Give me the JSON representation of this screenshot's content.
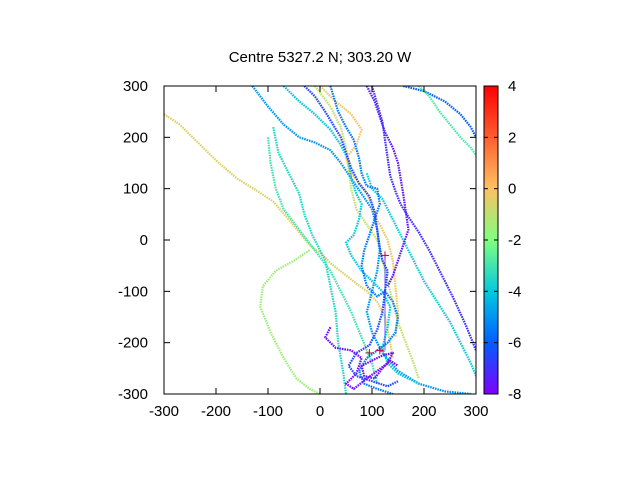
{
  "chart_data": {
    "type": "scatter",
    "title": "Centre 5327.2 N; 303.20  W",
    "xlabel": "",
    "ylabel": "",
    "xlim": [
      -300,
      300
    ],
    "ylim": [
      -300,
      300
    ],
    "xticks": [
      -300,
      -200,
      -100,
      0,
      100,
      200,
      300
    ],
    "yticks": [
      -300,
      -200,
      -100,
      0,
      100,
      200,
      300
    ],
    "xtick_labels": [
      "-300",
      "-200",
      "-100",
      "0",
      "100",
      "200",
      "300"
    ],
    "ytick_labels": [
      "-300",
      "-200",
      "-100",
      "0",
      "100",
      "200",
      "300"
    ],
    "grid": false,
    "colorbar": {
      "range": [
        -8,
        4
      ],
      "ticks": [
        4,
        2,
        0,
        -2,
        -4,
        -6,
        -8
      ],
      "tick_labels": [
        "4",
        "2",
        "0",
        "-2",
        "-4",
        "-6",
        "-8"
      ],
      "colormap": "rainbow",
      "colors": [
        "#8000ff",
        "#0060ff",
        "#00c8e0",
        "#80ff80",
        "#ffc060",
        "#ff6030",
        "#ff0000"
      ]
    },
    "tracks": [
      {
        "value": -0.5,
        "points": [
          [
            -300,
            245
          ],
          [
            -270,
            225
          ],
          [
            -240,
            195
          ],
          [
            -200,
            155
          ],
          [
            -160,
            120
          ],
          [
            -120,
            95
          ],
          [
            -90,
            75
          ],
          [
            -60,
            40
          ],
          [
            -40,
            15
          ],
          [
            -20,
            -10
          ],
          [
            0,
            -25
          ],
          [
            20,
            -45
          ],
          [
            45,
            -65
          ],
          [
            70,
            -85
          ],
          [
            90,
            -100
          ],
          [
            110,
            -120
          ],
          [
            125,
            -150
          ],
          [
            135,
            -200
          ],
          [
            140,
            -230
          ]
        ]
      },
      {
        "value": -1.5,
        "points": [
          [
            -20,
            -20
          ],
          [
            -50,
            -40
          ],
          [
            -85,
            -60
          ],
          [
            -110,
            -90
          ],
          [
            -115,
            -130
          ],
          [
            -95,
            -180
          ],
          [
            -70,
            -230
          ],
          [
            -45,
            -270
          ],
          [
            -20,
            -290
          ],
          [
            0,
            -300
          ]
        ]
      },
      {
        "value": -3.0,
        "points": [
          [
            -100,
            200
          ],
          [
            -95,
            150
          ],
          [
            -85,
            100
          ],
          [
            -70,
            60
          ],
          [
            -40,
            20
          ],
          [
            -10,
            -20
          ],
          [
            20,
            -60
          ],
          [
            40,
            -100
          ],
          [
            60,
            -140
          ],
          [
            80,
            -190
          ],
          [
            100,
            -240
          ],
          [
            110,
            -280
          ]
        ]
      },
      {
        "value": -3.5,
        "points": [
          [
            -90,
            220
          ],
          [
            -80,
            170
          ],
          [
            -60,
            130
          ],
          [
            -40,
            90
          ],
          [
            -30,
            50
          ],
          [
            -15,
            10
          ],
          [
            10,
            -40
          ],
          [
            20,
            -90
          ],
          [
            30,
            -140
          ],
          [
            35,
            -200
          ],
          [
            45,
            -260
          ],
          [
            50,
            -300
          ]
        ]
      },
      {
        "value": -1.0,
        "points": [
          [
            -10,
            300
          ],
          [
            20,
            260
          ],
          [
            40,
            220
          ],
          [
            50,
            180
          ],
          [
            55,
            140
          ],
          [
            60,
            100
          ],
          [
            70,
            60
          ],
          [
            90,
            30
          ],
          [
            110,
            0
          ],
          [
            120,
            -40
          ],
          [
            130,
            -80
          ],
          [
            140,
            -120
          ],
          [
            150,
            -160
          ],
          [
            165,
            -200
          ],
          [
            180,
            -240
          ],
          [
            190,
            -270
          ]
        ]
      },
      {
        "value": -0.2,
        "points": [
          [
            0,
            300
          ],
          [
            30,
            270
          ],
          [
            60,
            245
          ],
          [
            80,
            215
          ],
          [
            70,
            185
          ],
          [
            50,
            160
          ],
          [
            60,
            130
          ],
          [
            85,
            100
          ],
          [
            100,
            70
          ],
          [
            110,
            40
          ],
          [
            130,
            0
          ],
          [
            140,
            -40
          ],
          [
            145,
            -90
          ],
          [
            150,
            -140
          ],
          [
            145,
            -190
          ]
        ]
      },
      {
        "value": -5.0,
        "points": [
          [
            -130,
            300
          ],
          [
            -100,
            260
          ],
          [
            -70,
            225
          ],
          [
            -40,
            200
          ],
          [
            -10,
            190
          ],
          [
            20,
            175
          ],
          [
            40,
            150
          ],
          [
            60,
            120
          ],
          [
            80,
            90
          ],
          [
            100,
            60
          ],
          [
            110,
            20
          ],
          [
            115,
            -20
          ],
          [
            110,
            -60
          ],
          [
            100,
            -100
          ],
          [
            90,
            -140
          ],
          [
            100,
            -180
          ],
          [
            120,
            -220
          ],
          [
            150,
            -255
          ],
          [
            190,
            -280
          ],
          [
            240,
            -295
          ],
          [
            290,
            -300
          ]
        ]
      },
      {
        "value": -4.0,
        "points": [
          [
            -70,
            300
          ],
          [
            -40,
            270
          ],
          [
            -10,
            245
          ],
          [
            20,
            215
          ],
          [
            40,
            185
          ],
          [
            55,
            155
          ],
          [
            60,
            120
          ],
          [
            70,
            90
          ],
          [
            80,
            70
          ],
          [
            75,
            40
          ],
          [
            65,
            10
          ],
          [
            50,
            -5
          ],
          [
            60,
            -30
          ],
          [
            80,
            -60
          ],
          [
            100,
            -80
          ],
          [
            120,
            -100
          ],
          [
            135,
            -130
          ],
          [
            130,
            -170
          ],
          [
            120,
            -210
          ],
          [
            130,
            -240
          ],
          [
            150,
            -260
          ],
          [
            190,
            -280
          ]
        ]
      },
      {
        "value": -3.8,
        "points": [
          [
            90,
            130
          ],
          [
            100,
            100
          ],
          [
            120,
            80
          ],
          [
            140,
            40
          ],
          [
            160,
            0
          ],
          [
            180,
            -40
          ],
          [
            200,
            -80
          ],
          [
            225,
            -120
          ],
          [
            250,
            -160
          ],
          [
            270,
            -200
          ],
          [
            290,
            -240
          ],
          [
            300,
            -265
          ]
        ]
      },
      {
        "value": -5.5,
        "points": [
          [
            20,
            300
          ],
          [
            35,
            250
          ],
          [
            50,
            220
          ],
          [
            65,
            195
          ],
          [
            75,
            160
          ],
          [
            80,
            130
          ],
          [
            90,
            105
          ],
          [
            110,
            100
          ],
          [
            115,
            70
          ],
          [
            105,
            40
          ],
          [
            95,
            10
          ],
          [
            85,
            -20
          ],
          [
            80,
            -50
          ],
          [
            90,
            -90
          ],
          [
            110,
            -110
          ],
          [
            125,
            -100
          ],
          [
            140,
            -120
          ],
          [
            150,
            -150
          ],
          [
            145,
            -180
          ],
          [
            130,
            -200
          ],
          [
            110,
            -215
          ],
          [
            90,
            -230
          ],
          [
            75,
            -255
          ],
          [
            85,
            -280
          ],
          [
            110,
            -290
          ],
          [
            140,
            -300
          ]
        ]
      },
      {
        "value": -6.5,
        "points": [
          [
            -30,
            300
          ],
          [
            -10,
            280
          ],
          [
            10,
            250
          ],
          [
            25,
            225
          ],
          [
            40,
            200
          ],
          [
            50,
            170
          ],
          [
            60,
            140
          ],
          [
            75,
            110
          ],
          [
            95,
            85
          ],
          [
            105,
            55
          ],
          [
            110,
            20
          ],
          [
            115,
            -15
          ],
          [
            120,
            -40
          ],
          [
            130,
            -60
          ],
          [
            125,
            -100
          ],
          [
            120,
            -140
          ],
          [
            110,
            -175
          ],
          [
            95,
            -205
          ],
          [
            70,
            -220
          ],
          [
            55,
            -245
          ],
          [
            70,
            -265
          ],
          [
            100,
            -275
          ],
          [
            130,
            -285
          ],
          [
            150,
            -275
          ]
        ]
      },
      {
        "value": -7.5,
        "points": [
          [
            90,
            300
          ],
          [
            105,
            270
          ],
          [
            115,
            240
          ],
          [
            125,
            210
          ],
          [
            140,
            180
          ],
          [
            150,
            150
          ],
          [
            155,
            120
          ],
          [
            160,
            90
          ],
          [
            165,
            55
          ],
          [
            170,
            20
          ],
          [
            160,
            -10
          ],
          [
            150,
            -40
          ],
          [
            140,
            -70
          ],
          [
            130,
            -90
          ]
        ]
      },
      {
        "value": -7.8,
        "points": [
          [
            20,
            -170
          ],
          [
            10,
            -190
          ],
          [
            30,
            -210
          ],
          [
            60,
            -215
          ],
          [
            80,
            -230
          ],
          [
            70,
            -260
          ],
          [
            50,
            -280
          ],
          [
            65,
            -290
          ],
          [
            90,
            -270
          ],
          [
            110,
            -255
          ],
          [
            130,
            -240
          ],
          [
            140,
            -220
          ],
          [
            120,
            -225
          ],
          [
            100,
            -235
          ],
          [
            80,
            -245
          ],
          [
            85,
            -265
          ],
          [
            105,
            -270
          ],
          [
            120,
            -250
          ],
          [
            135,
            -235
          ],
          [
            150,
            -245
          ]
        ]
      },
      {
        "value": -7.0,
        "points": [
          [
            100,
            300
          ],
          [
            110,
            265
          ],
          [
            120,
            230
          ],
          [
            125,
            195
          ],
          [
            130,
            160
          ],
          [
            135,
            125
          ],
          [
            145,
            95
          ],
          [
            155,
            70
          ],
          [
            170,
            45
          ],
          [
            190,
            15
          ],
          [
            210,
            -20
          ],
          [
            230,
            -60
          ],
          [
            255,
            -110
          ],
          [
            280,
            -165
          ],
          [
            300,
            -215
          ]
        ]
      },
      {
        "value": -6.0,
        "points": [
          [
            160,
            300
          ],
          [
            200,
            290
          ],
          [
            240,
            270
          ],
          [
            270,
            245
          ],
          [
            290,
            220
          ],
          [
            300,
            200
          ]
        ]
      },
      {
        "value": -2.8,
        "points": [
          [
            190,
            300
          ],
          [
            210,
            280
          ],
          [
            230,
            250
          ],
          [
            250,
            225
          ],
          [
            270,
            200
          ],
          [
            290,
            180
          ],
          [
            300,
            165
          ]
        ]
      }
    ],
    "cross_markers": [
      [
        115,
        -215
      ],
      [
        125,
        -30
      ],
      [
        95,
        -220
      ]
    ],
    "guide_lines": [
      {
        "x": 125,
        "y_from": -215,
        "y_to": -30,
        "value": -7.0
      }
    ]
  }
}
